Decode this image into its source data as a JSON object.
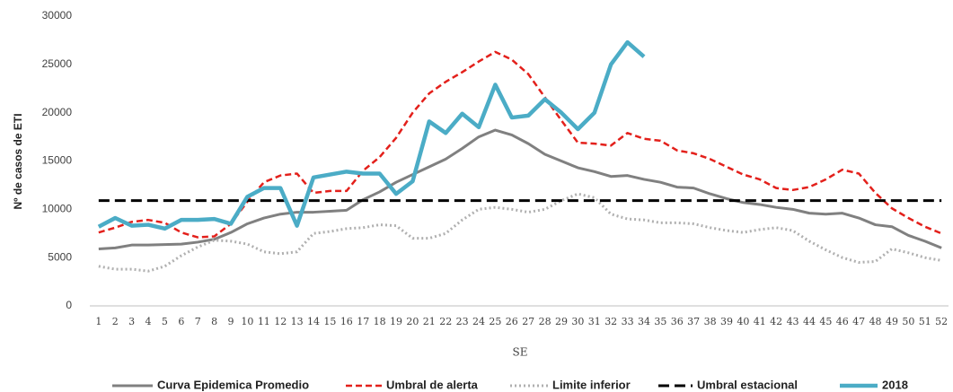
{
  "chart_data": {
    "type": "line",
    "x_label": "SE",
    "y_label": "Nº de casos de ETI",
    "x": [
      1,
      2,
      3,
      4,
      5,
      6,
      7,
      8,
      9,
      10,
      11,
      12,
      13,
      14,
      15,
      16,
      17,
      18,
      19,
      20,
      21,
      22,
      23,
      24,
      25,
      26,
      27,
      28,
      29,
      30,
      31,
      32,
      33,
      34,
      35,
      36,
      37,
      38,
      39,
      40,
      41,
      42,
      43,
      44,
      45,
      46,
      47,
      48,
      49,
      50,
      51,
      52
    ],
    "xlim": [
      0.9,
      52.1
    ],
    "ylim": [
      0,
      30000
    ],
    "yticks": [
      0,
      5000,
      10000,
      15000,
      20000,
      25000,
      30000
    ],
    "series": [
      {
        "name": "Curva Epidemica Promedio",
        "color": "#808080",
        "dash": "solid",
        "width": 3,
        "values": [
          5900,
          6000,
          6300,
          6300,
          6350,
          6400,
          6600,
          6900,
          7600,
          8500,
          9100,
          9500,
          9700,
          9700,
          9800,
          9900,
          11000,
          11800,
          12800,
          13600,
          14400,
          15200,
          16300,
          17500,
          18200,
          17700,
          16800,
          15700,
          15000,
          14300,
          13900,
          13400,
          13500,
          13100,
          12800,
          12300,
          12200,
          11600,
          11100,
          10700,
          10500,
          10200,
          10000,
          9600,
          9500,
          9600,
          9100,
          8400,
          8200,
          7300,
          6700,
          6000
        ]
      },
      {
        "name": "Umbral de alerta",
        "color": "#e3201b",
        "dash": "dashed",
        "width": 2.5,
        "values": [
          7600,
          8100,
          8700,
          8900,
          8600,
          7600,
          7100,
          7200,
          8500,
          10800,
          12800,
          13500,
          13700,
          11700,
          11900,
          11900,
          14000,
          15400,
          17400,
          20000,
          22000,
          23200,
          24200,
          25300,
          26300,
          25500,
          24000,
          21600,
          19200,
          16900,
          16800,
          16600,
          17900,
          17300,
          17100,
          16100,
          15800,
          15200,
          14400,
          13600,
          13100,
          12200,
          12000,
          12300,
          13100,
          14100,
          13700,
          11700,
          10100,
          9100,
          8200,
          7500
        ]
      },
      {
        "name": "Limite inferior",
        "color": "#b0b0b0",
        "dash": "dotted",
        "width": 3,
        "values": [
          4100,
          3800,
          3800,
          3600,
          4100,
          5200,
          6100,
          6800,
          6700,
          6400,
          5600,
          5400,
          5600,
          7500,
          7700,
          8000,
          8100,
          8400,
          8300,
          7000,
          7000,
          7500,
          8900,
          10000,
          10200,
          10000,
          9700,
          10000,
          10900,
          11600,
          11200,
          9500,
          9000,
          8900,
          8600,
          8600,
          8500,
          8100,
          7800,
          7600,
          7900,
          8100,
          7800,
          6700,
          5800,
          5000,
          4500,
          4600,
          5900,
          5500,
          5000,
          4700
        ]
      },
      {
        "name": "Umbral estacional",
        "color": "#000000",
        "dash": "longdash",
        "width": 3,
        "values": [
          10900,
          10900,
          10900,
          10900,
          10900,
          10900,
          10900,
          10900,
          10900,
          10900,
          10900,
          10900,
          10900,
          10900,
          10900,
          10900,
          10900,
          10900,
          10900,
          10900,
          10900,
          10900,
          10900,
          10900,
          10900,
          10900,
          10900,
          10900,
          10900,
          10900,
          10900,
          10900,
          10900,
          10900,
          10900,
          10900,
          10900,
          10900,
          10900,
          10900,
          10900,
          10900,
          10900,
          10900,
          10900,
          10900,
          10900,
          10900,
          10900,
          10900,
          10900,
          10900
        ]
      },
      {
        "name": "2018",
        "color": "#4bacc6",
        "dash": "solid",
        "width": 4.5,
        "values": [
          8200,
          9100,
          8300,
          8400,
          8000,
          8900,
          8900,
          9000,
          8500,
          11300,
          12200,
          12200,
          8300,
          13300,
          13600,
          13900,
          13700,
          13700,
          11600,
          12900,
          19100,
          17900,
          19900,
          18500,
          22900,
          19500,
          19700,
          21400,
          20000,
          18300,
          20000,
          25000,
          27300,
          25800,
          null,
          null,
          null,
          null,
          null,
          null,
          null,
          null,
          null,
          null,
          null,
          null,
          null,
          null,
          null,
          null,
          null,
          null
        ]
      }
    ]
  }
}
